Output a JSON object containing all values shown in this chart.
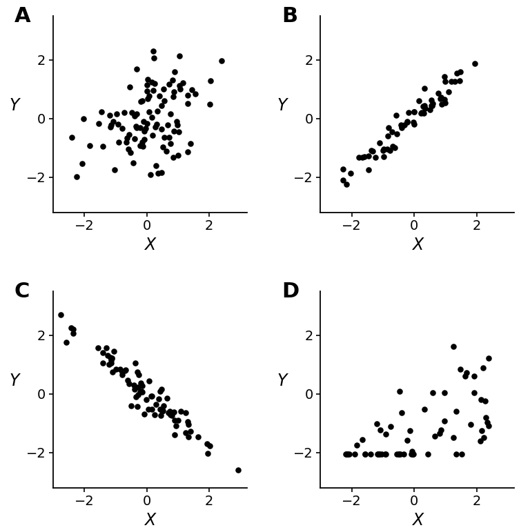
{
  "panels": [
    "A",
    "B",
    "C",
    "D"
  ],
  "dot_color": "#000000",
  "dot_size": 38,
  "xlim": [
    -3.0,
    3.2
  ],
  "ylim": [
    -3.2,
    3.5
  ],
  "xlim_d": [
    -3.0,
    3.2
  ],
  "ylim_d": [
    -3.0,
    3.0
  ],
  "xlabel": "X",
  "ylabel": "Y",
  "xticks": [
    -2,
    0,
    2
  ],
  "yticks": [
    -2,
    0,
    2
  ],
  "tick_fontsize": 14,
  "label_fontsize": 17,
  "panel_label_fontsize": 22,
  "background_color": "#ffffff"
}
